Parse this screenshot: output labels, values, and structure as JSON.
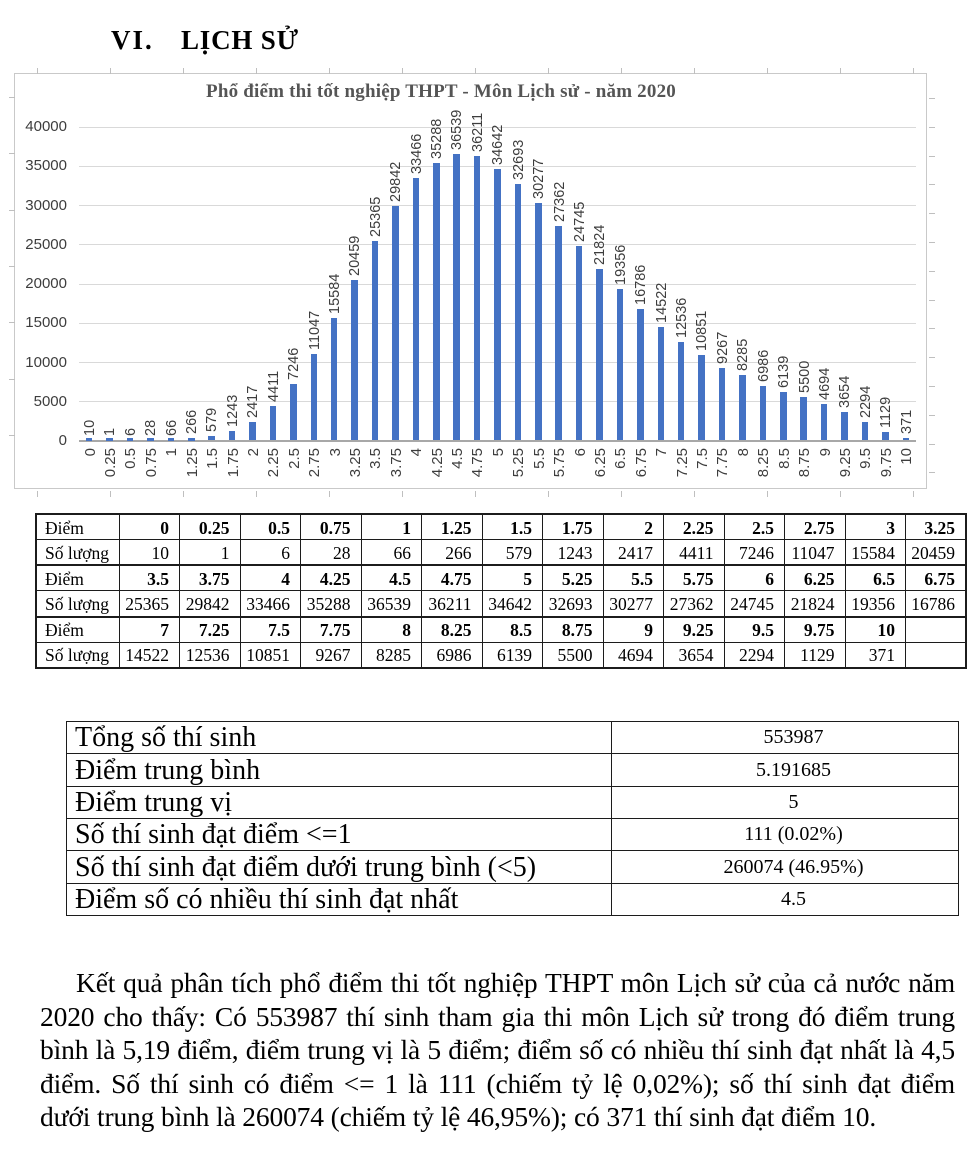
{
  "heading": {
    "number": "VI.",
    "title": "LỊCH SỬ"
  },
  "chart_data": {
    "type": "bar",
    "title": "Phổ điểm thi tốt nghiệp THPT - Môn Lịch sử - năm 2020",
    "categories": [
      "0",
      "0.25",
      "0.5",
      "0.75",
      "1",
      "1.25",
      "1.5",
      "1.75",
      "2",
      "2.25",
      "2.5",
      "2.75",
      "3",
      "3.25",
      "3.5",
      "3.75",
      "4",
      "4.25",
      "4.5",
      "4.75",
      "5",
      "5.25",
      "5.5",
      "5.75",
      "6",
      "6.25",
      "6.5",
      "6.75",
      "7",
      "7.25",
      "7.5",
      "7.75",
      "8",
      "8.25",
      "8.5",
      "8.75",
      "9",
      "9.25",
      "9.5",
      "9.75",
      "10"
    ],
    "values": [
      10,
      1,
      6,
      28,
      66,
      266,
      579,
      1243,
      2417,
      4411,
      7246,
      11047,
      15584,
      20459,
      25365,
      29842,
      33466,
      35288,
      36539,
      36211,
      34642,
      32693,
      30277,
      27362,
      24745,
      21824,
      19356,
      16786,
      14522,
      12536,
      10851,
      9267,
      8285,
      6986,
      6139,
      5500,
      4694,
      3654,
      2294,
      1129,
      371
    ],
    "yticks": [
      0,
      5000,
      10000,
      15000,
      20000,
      25000,
      30000,
      35000,
      40000
    ],
    "ylim": [
      0,
      40000
    ],
    "xlabel": "",
    "ylabel": "",
    "grid": true,
    "legend": false,
    "bar_color": "#4472c4",
    "label_color": "#3d3d3d",
    "title_color": "#555555"
  },
  "score_table": {
    "score_label": "Điểm",
    "count_label": "Số lượng",
    "groups": [
      {
        "scores": [
          "0",
          "0.25",
          "0.5",
          "0.75",
          "1",
          "1.25",
          "1.5",
          "1.75",
          "2",
          "2.25",
          "2.5",
          "2.75",
          "3",
          "3.25"
        ],
        "counts": [
          "10",
          "1",
          "6",
          "28",
          "66",
          "266",
          "579",
          "1243",
          "2417",
          "4411",
          "7246",
          "11047",
          "15584",
          "20459"
        ]
      },
      {
        "scores": [
          "3.5",
          "3.75",
          "4",
          "4.25",
          "4.5",
          "4.75",
          "5",
          "5.25",
          "5.5",
          "5.75",
          "6",
          "6.25",
          "6.5",
          "6.75"
        ],
        "counts": [
          "25365",
          "29842",
          "33466",
          "35288",
          "36539",
          "36211",
          "34642",
          "32693",
          "30277",
          "27362",
          "24745",
          "21824",
          "19356",
          "16786"
        ]
      },
      {
        "scores": [
          "7",
          "7.25",
          "7.5",
          "7.75",
          "8",
          "8.25",
          "8.5",
          "8.75",
          "9",
          "9.25",
          "9.5",
          "9.75",
          "10",
          ""
        ],
        "counts": [
          "14522",
          "12536",
          "10851",
          "9267",
          "8285",
          "6986",
          "6139",
          "5500",
          "4694",
          "3654",
          "2294",
          "1129",
          "371",
          ""
        ]
      }
    ]
  },
  "summary_table": {
    "rows": [
      {
        "label": "Tổng số thí sinh",
        "value": "553987"
      },
      {
        "label": "Điểm trung bình",
        "value": "5.191685"
      },
      {
        "label": "Điểm trung vị",
        "value": "5"
      },
      {
        "label": "Số thí sinh đạt điểm <=1",
        "value": "111 (0.02%)"
      },
      {
        "label": "Số thí sinh đạt điểm dưới trung bình (<5)",
        "value": "260074 (46.95%)"
      },
      {
        "label": "Điểm số có nhiều thí sinh đạt nhất",
        "value": "4.5"
      }
    ]
  },
  "paragraph": {
    "lines": [
      "Kết quả phân tích phổ điểm thi tốt nghiệp THPT môn Lịch sử của cả nước năm",
      "2020 cho thấy: Có 553987 thí sinh tham gia thi môn Lịch sử trong đó điểm trung",
      "bình là 5,19 điểm, điểm trung vị là 5 điểm; điểm số có nhiều thí sinh đạt nhất là 4,5",
      "điểm. Số thí sinh có điểm <= 1 là 111 (chiếm tỷ lệ 0,02%); số thí sinh đạt điểm",
      "dưới trung bình là 260074 (chiếm tỷ lệ 46,95%); có 371 thí sinh đạt điểm 10."
    ]
  }
}
